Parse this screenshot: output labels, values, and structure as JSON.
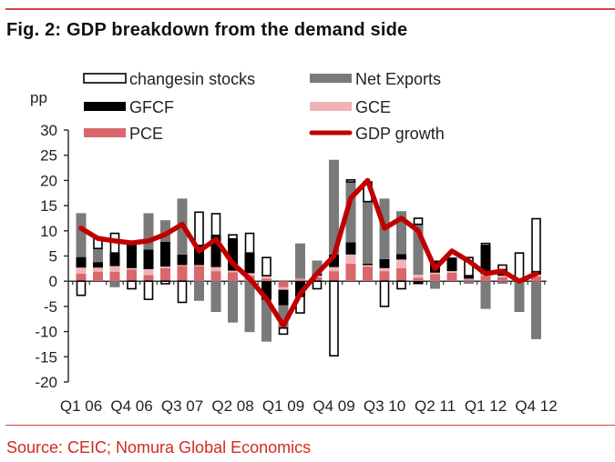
{
  "title": "Fig. 2: GDP breakdown from the demand side",
  "source": "Source: CEIC; Nomura Global Economics",
  "colors": {
    "rule": "#d9423f",
    "source_text": "#d42a20"
  },
  "chart_data": {
    "type": "bar",
    "stacked": true,
    "title": "Fig. 2: GDP breakdown from the demand side",
    "ylabel": "pp",
    "xlabel": "",
    "ylim": [
      -20,
      30
    ],
    "yticks": [
      30,
      25,
      20,
      15,
      10,
      5,
      0,
      -5,
      -10,
      -15,
      -20
    ],
    "grid": false,
    "legend": "top",
    "categories": [
      "Q1 06",
      "Q2 06",
      "Q3 06",
      "Q4 06",
      "Q1 07",
      "Q2 07",
      "Q3 07",
      "Q4 07",
      "Q1 08",
      "Q2 08",
      "Q3 08",
      "Q4 08",
      "Q1 09",
      "Q2 09",
      "Q3 09",
      "Q4 09",
      "Q1 10",
      "Q2 10",
      "Q3 10",
      "Q4 10",
      "Q1 11",
      "Q2 11",
      "Q3 11",
      "Q4 11",
      "Q1 12",
      "Q2 12",
      "Q3 12",
      "Q4 12"
    ],
    "xtick_labels": [
      "Q1 06",
      "Q4 06",
      "Q3 07",
      "Q2 08",
      "Q1 09",
      "Q4 09",
      "Q3 10",
      "Q2 11",
      "Q1 12",
      "Q4 12"
    ],
    "series": [
      {
        "name": "PCE",
        "kind": "bar",
        "color": "#d9676e",
        "values": [
          1.5,
          1.9,
          1.9,
          2.3,
          1.2,
          2.6,
          3.0,
          3.0,
          2.0,
          1.8,
          1.1,
          0.5,
          -1.2,
          0.3,
          0.8,
          2.0,
          3.5,
          2.9,
          2.0,
          2.6,
          0.7,
          1.4,
          1.7,
          0.3,
          1.1,
          0.8,
          0.2,
          1.0
        ]
      },
      {
        "name": "GCE",
        "kind": "bar",
        "color": "#efb3b7",
        "values": [
          1.2,
          0.8,
          1.1,
          0.3,
          1.2,
          0.3,
          0.2,
          0.2,
          0.8,
          0.3,
          0.5,
          0.6,
          -0.5,
          0.2,
          0.3,
          0.8,
          1.8,
          0.3,
          0.6,
          1.7,
          0.6,
          0.3,
          0.3,
          0.2,
          0.3,
          0.3,
          0.2,
          0.3
        ]
      },
      {
        "name": "GFCF",
        "kind": "bar",
        "color": "#000000",
        "values": [
          2.1,
          1.1,
          2.6,
          4.7,
          3.9,
          4.9,
          2.1,
          3.9,
          6.3,
          6.3,
          4.0,
          -3.7,
          -3.1,
          -3.0,
          0.3,
          2.5,
          2.4,
          0.3,
          1.8,
          1.1,
          -0.6,
          2.4,
          2.7,
          0.6,
          5.7,
          1.2,
          0.0,
          0.6
        ]
      },
      {
        "name": "Net Exports",
        "kind": "bar",
        "color": "#7a7a7a",
        "values": [
          8.7,
          2.7,
          -1.2,
          0.0,
          7.2,
          4.3,
          11.1,
          -3.9,
          -6.1,
          -8.2,
          -10.1,
          -8.3,
          -4.5,
          7.0,
          2.7,
          18.8,
          12.0,
          12.3,
          12.0,
          8.5,
          10.0,
          -1.5,
          0.0,
          -0.5,
          -5.5,
          -0.5,
          -6.1,
          -11.5
        ]
      },
      {
        "name": "changes in stocks",
        "kind": "bar",
        "color": "#ffffff",
        "values": [
          -2.8,
          2.1,
          3.9,
          -1.5,
          -3.6,
          -0.5,
          -4.2,
          6.6,
          4.3,
          0.8,
          3.9,
          3.6,
          -1.2,
          -3.3,
          -1.5,
          -14.8,
          0.4,
          3.9,
          -5.0,
          -1.5,
          1.2,
          0.0,
          0.0,
          3.6,
          0.4,
          0.9,
          5.2,
          10.5
        ]
      },
      {
        "name": "GDP growth",
        "kind": "line",
        "color": "#c00000",
        "values": [
          10.5,
          8.5,
          8.0,
          7.6,
          8.0,
          9.3,
          11.3,
          6.0,
          8.3,
          3.5,
          0.5,
          -3.5,
          -8.8,
          -2.5,
          1.5,
          5.0,
          16.5,
          20.0,
          10.5,
          12.5,
          10.0,
          2.5,
          6.0,
          4.0,
          1.5,
          2.0,
          0.0,
          1.5
        ]
      }
    ],
    "legend_entries": [
      {
        "label": "changes in stocks",
        "display": "changesin stocks",
        "series": 4
      },
      {
        "label": "Net Exports",
        "display": "Net Exports",
        "series": 3
      },
      {
        "label": "GFCF",
        "display": "GFCF",
        "series": 2
      },
      {
        "label": "GCE",
        "display": "GCE",
        "series": 1
      },
      {
        "label": "PCE",
        "display": "PCE",
        "series": 0
      },
      {
        "label": "GDP growth",
        "display": "GDP growth",
        "series": 5
      }
    ]
  }
}
